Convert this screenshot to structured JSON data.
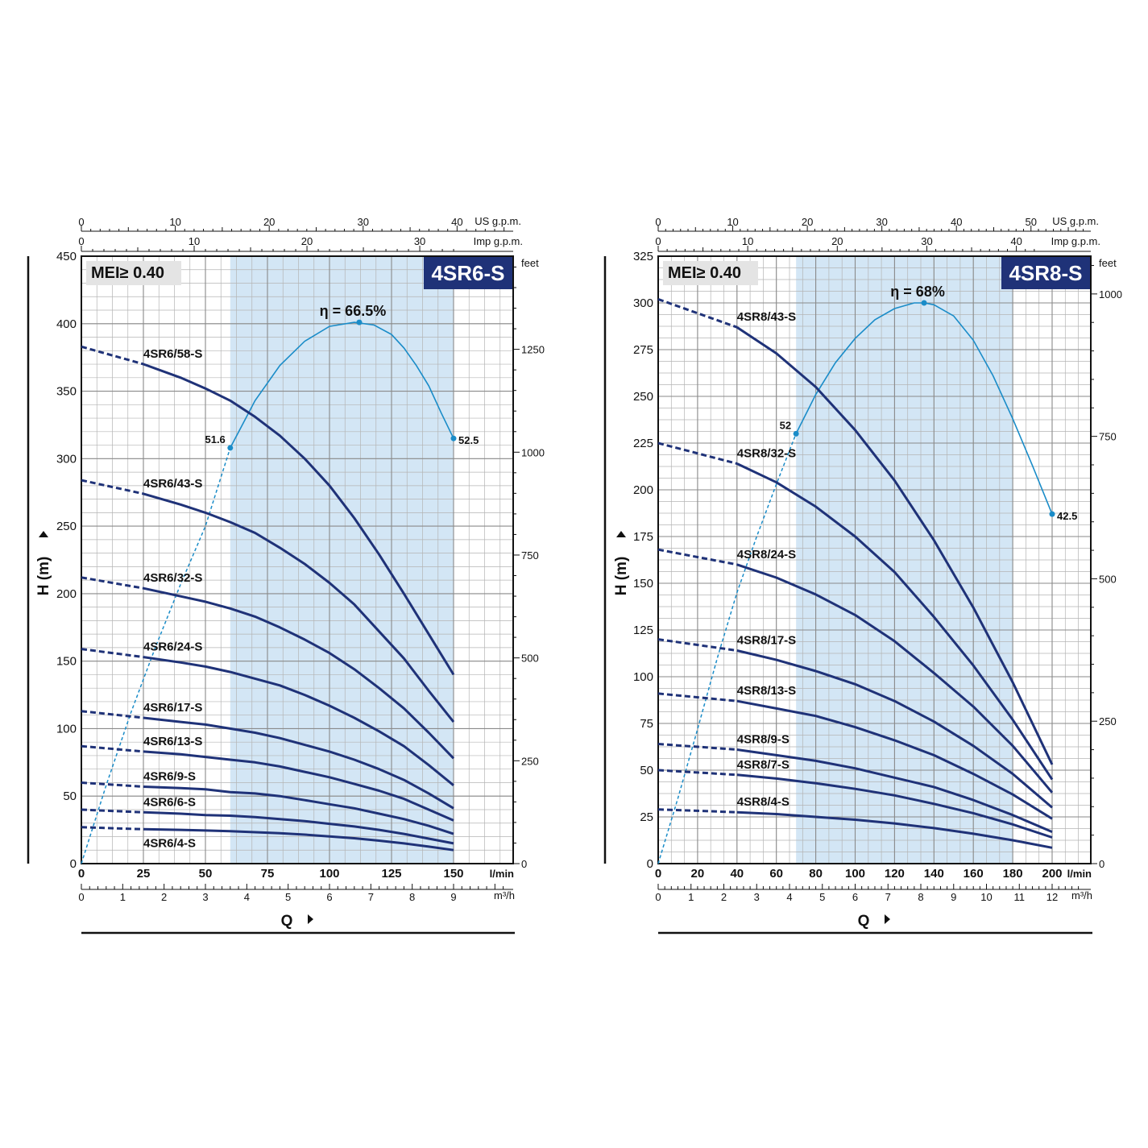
{
  "colors": {
    "curve": "#1f3278",
    "efficiency": "#1a8cc8",
    "band": "#d3e6f5",
    "grid": "#b4b4b4",
    "badge": "#1f3278"
  },
  "chart_data": [
    {
      "type": "line",
      "badge": "4SR6-S",
      "mei": "MEI≥ 0.40",
      "ylabel": "H (m)",
      "xlabel": "Q",
      "x_unit": "l/min",
      "x_m3h_unit": "m³/h",
      "us_gpm_unit": "US g.p.m.",
      "imp_gpm_unit": "Imp g.p.m.",
      "feet_unit": "feet",
      "xlim": [
        0,
        175
      ],
      "ylim": [
        0,
        450
      ],
      "x_ticks": [
        0,
        25,
        50,
        75,
        100,
        125,
        150
      ],
      "y_ticks": [
        0,
        50,
        100,
        150,
        200,
        250,
        300,
        350,
        400,
        450
      ],
      "m3h_ticks": [
        0,
        1,
        2,
        3,
        4,
        5,
        6,
        7,
        8,
        9
      ],
      "us_gpm_ticks": [
        0,
        10,
        20,
        30,
        40
      ],
      "imp_gpm_ticks": [
        0,
        10,
        20,
        30
      ],
      "feet_ticks": [
        0,
        250,
        500,
        750,
        1000,
        1250
      ],
      "band": [
        60,
        150
      ],
      "eff_label": "η = 66.5%",
      "eff_left_label": "51.6",
      "eff_right_label": "52.5",
      "efficiency": {
        "x": [
          0,
          10,
          20,
          30,
          40,
          50,
          60,
          70,
          80,
          90,
          100,
          110,
          118,
          125,
          130,
          135,
          140,
          145,
          150
        ],
        "y": [
          0,
          58,
          112,
          161,
          207,
          250,
          308,
          343,
          369,
          387,
          398,
          401,
          399,
          392,
          382,
          369,
          354,
          334,
          315
        ]
      },
      "eff_points": [
        {
          "x": 60,
          "y": 308
        },
        {
          "x": 112,
          "y": 401
        },
        {
          "x": 150,
          "y": 315
        }
      ],
      "series": [
        {
          "name": "4SR6/58-S",
          "solid_from": 25,
          "x": [
            0,
            25,
            40,
            50,
            60,
            70,
            80,
            90,
            100,
            110,
            120,
            130,
            140,
            150
          ],
          "y": [
            383,
            370,
            360,
            352,
            343,
            331,
            317,
            300,
            280,
            256,
            229,
            200,
            170,
            140
          ]
        },
        {
          "name": "4SR6/43-S",
          "solid_from": 25,
          "x": [
            0,
            25,
            40,
            50,
            60,
            70,
            80,
            90,
            100,
            110,
            120,
            130,
            140,
            150
          ],
          "y": [
            284,
            274,
            266,
            260,
            253,
            245,
            234,
            222,
            208,
            192,
            172,
            152,
            128,
            105
          ]
        },
        {
          "name": "4SR6/32-S",
          "solid_from": 25,
          "x": [
            0,
            25,
            40,
            50,
            60,
            70,
            80,
            90,
            100,
            110,
            120,
            130,
            140,
            150
          ],
          "y": [
            212,
            204,
            198,
            194,
            189,
            183,
            175,
            166,
            156,
            144,
            130,
            115,
            97,
            78
          ]
        },
        {
          "name": "4SR6/24-S",
          "solid_from": 25,
          "x": [
            0,
            25,
            40,
            50,
            60,
            70,
            80,
            90,
            100,
            110,
            120,
            130,
            140,
            150
          ],
          "y": [
            159,
            153,
            149,
            146,
            142,
            137,
            132,
            125,
            117,
            108,
            98,
            87,
            73,
            58
          ]
        },
        {
          "name": "4SR6/17-S",
          "solid_from": 25,
          "x": [
            0,
            25,
            40,
            50,
            60,
            70,
            80,
            90,
            100,
            110,
            120,
            130,
            140,
            150
          ],
          "y": [
            113,
            108,
            105,
            103,
            100,
            97,
            93,
            88,
            83,
            77,
            70,
            62,
            52,
            41
          ]
        },
        {
          "name": "4SR6/13-S",
          "solid_from": 25,
          "x": [
            0,
            25,
            40,
            50,
            60,
            70,
            80,
            90,
            100,
            110,
            120,
            130,
            140,
            150
          ],
          "y": [
            87,
            83,
            81,
            79,
            77,
            75,
            72,
            68,
            64,
            59,
            54,
            48,
            40,
            32
          ]
        },
        {
          "name": "4SR6/9-S",
          "solid_from": 25,
          "x": [
            0,
            25,
            40,
            50,
            60,
            70,
            80,
            90,
            100,
            110,
            120,
            130,
            140,
            150
          ],
          "y": [
            60,
            57,
            56,
            55,
            53,
            52,
            50,
            47,
            44,
            41,
            37,
            33,
            28,
            22
          ]
        },
        {
          "name": "4SR6/6-S",
          "solid_from": 25,
          "x": [
            0,
            25,
            40,
            50,
            60,
            70,
            80,
            90,
            100,
            110,
            120,
            130,
            140,
            150
          ],
          "y": [
            40,
            38,
            37,
            36,
            35.5,
            34.5,
            33,
            31.5,
            29.5,
            27.5,
            25,
            22,
            18.5,
            15
          ]
        },
        {
          "name": "4SR6/4-S",
          "solid_from": 25,
          "x": [
            0,
            25,
            40,
            50,
            60,
            70,
            80,
            90,
            100,
            110,
            120,
            130,
            140,
            150
          ],
          "y": [
            27,
            25.5,
            25,
            24.5,
            24,
            23.3,
            22.5,
            21.5,
            20.2,
            18.8,
            17,
            15,
            12.6,
            10
          ]
        }
      ]
    },
    {
      "type": "line",
      "badge": "4SR8-S",
      "mei": "MEI≥ 0.40",
      "ylabel": "H (m)",
      "xlabel": "Q",
      "x_unit": "l/min",
      "x_m3h_unit": "m³/h",
      "us_gpm_unit": "US g.p.m.",
      "imp_gpm_unit": "Imp g.p.m.",
      "feet_unit": "feet",
      "xlim": [
        0,
        220
      ],
      "ylim": [
        0,
        325
      ],
      "x_ticks": [
        0,
        20,
        40,
        60,
        80,
        100,
        120,
        140,
        160,
        180,
        200
      ],
      "y_ticks": [
        0,
        25,
        50,
        75,
        100,
        125,
        150,
        175,
        200,
        225,
        250,
        275,
        300,
        325
      ],
      "m3h_ticks": [
        0,
        1,
        2,
        3,
        4,
        5,
        6,
        7,
        8,
        9,
        10,
        11,
        12
      ],
      "us_gpm_ticks": [
        0,
        10,
        20,
        30,
        40,
        50
      ],
      "imp_gpm_ticks": [
        0,
        10,
        20,
        30,
        40
      ],
      "feet_ticks": [
        0,
        250,
        500,
        750,
        1000
      ],
      "band": [
        70,
        180
      ],
      "eff_label": "η = 68%",
      "eff_left_label": "52",
      "eff_right_label": "42.5",
      "efficiency": {
        "x": [
          0,
          10,
          20,
          30,
          40,
          50,
          60,
          70,
          80,
          90,
          100,
          110,
          120,
          130,
          135,
          140,
          150,
          160,
          170,
          180,
          190,
          200
        ],
        "y": [
          0,
          35,
          72,
          110,
          145,
          175,
          203,
          230,
          251,
          268,
          281,
          291,
          297,
          300,
          300,
          299,
          293,
          280,
          261,
          238,
          213,
          187
        ]
      },
      "eff_points": [
        {
          "x": 70,
          "y": 230
        },
        {
          "x": 135,
          "y": 300
        },
        {
          "x": 200,
          "y": 187
        }
      ],
      "series": [
        {
          "name": "4SR8/43-S",
          "solid_from": 40,
          "x": [
            0,
            40,
            60,
            80,
            100,
            120,
            140,
            160,
            180,
            200
          ],
          "y": [
            302,
            287,
            273,
            255,
            232,
            205,
            173,
            137,
            97,
            53
          ]
        },
        {
          "name": "4SR8/32-S",
          "solid_from": 40,
          "x": [
            0,
            40,
            60,
            80,
            100,
            120,
            140,
            160,
            180,
            200
          ],
          "y": [
            225,
            214,
            204,
            191,
            175,
            156,
            132,
            106,
            77,
            45
          ]
        },
        {
          "name": "4SR8/24-S",
          "solid_from": 40,
          "x": [
            0,
            40,
            60,
            80,
            100,
            120,
            140,
            160,
            180,
            200
          ],
          "y": [
            168,
            160,
            153,
            144,
            133,
            119,
            102,
            84,
            63,
            38
          ]
        },
        {
          "name": "4SR8/17-S",
          "solid_from": 40,
          "x": [
            0,
            40,
            60,
            80,
            100,
            120,
            140,
            160,
            180,
            200
          ],
          "y": [
            120,
            114,
            109,
            103,
            96,
            87,
            76,
            63,
            48,
            30
          ]
        },
        {
          "name": "4SR8/13-S",
          "solid_from": 40,
          "x": [
            0,
            40,
            60,
            80,
            100,
            120,
            140,
            160,
            180,
            200
          ],
          "y": [
            91,
            87,
            83,
            79,
            73,
            66,
            58,
            48,
            37,
            24
          ]
        },
        {
          "name": "4SR8/9-S",
          "solid_from": 40,
          "x": [
            0,
            40,
            60,
            80,
            100,
            120,
            140,
            160,
            180,
            200
          ],
          "y": [
            64,
            61,
            58,
            55,
            51,
            46,
            41,
            34,
            26,
            17
          ]
        },
        {
          "name": "4SR8/7-S",
          "solid_from": 40,
          "x": [
            0,
            40,
            60,
            80,
            100,
            120,
            140,
            160,
            180,
            200
          ],
          "y": [
            50,
            47.5,
            45.5,
            43,
            40,
            36.5,
            32,
            27,
            21,
            14
          ]
        },
        {
          "name": "4SR8/4-S",
          "solid_from": 40,
          "x": [
            0,
            40,
            60,
            80,
            100,
            120,
            140,
            160,
            180,
            200
          ],
          "y": [
            29,
            27.5,
            26.5,
            25,
            23.5,
            21.5,
            19,
            16,
            12.5,
            8.5
          ]
        }
      ]
    }
  ]
}
